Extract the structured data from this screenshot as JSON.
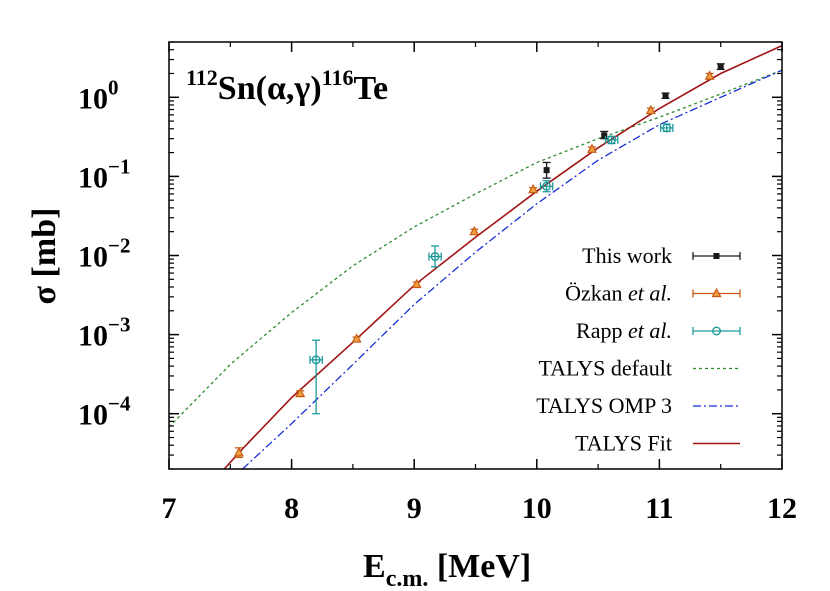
{
  "chart_data": {
    "type": "scatter",
    "title": "",
    "annotation": {
      "target_mass": "112",
      "target_el": "Sn",
      "reaction": "(α,γ)",
      "product_mass": "116",
      "product_el": "Te"
    },
    "xlabel": {
      "main": "E",
      "sub": "c.m.",
      "unit": " [MeV]"
    },
    "ylabel": "σ [mb]",
    "xlim": [
      7,
      12
    ],
    "ylim": [
      2e-05,
      5
    ],
    "yscale": "log",
    "xticks": [
      "7",
      "8",
      "9",
      "10",
      "11",
      "12"
    ],
    "yticks": [
      {
        "value": 0.0001,
        "base": "10",
        "exp": "−4"
      },
      {
        "value": 0.001,
        "base": "10",
        "exp": "−3"
      },
      {
        "value": 0.01,
        "base": "10",
        "exp": "−2"
      },
      {
        "value": 0.1,
        "base": "10",
        "exp": "−1"
      },
      {
        "value": 1,
        "base": "10",
        "exp": "0"
      }
    ],
    "legend_position": "bottom-right",
    "colors": {
      "this_work": "#1a1a1a",
      "ozkan": "#c85a14",
      "rapp": "#1f9a9a",
      "talys_default": "#2e8b2e",
      "talys_omp3": "#1a2fd6",
      "talys_fit": "#a01414"
    },
    "series": [
      {
        "name": "This work",
        "kind": "points",
        "marker": "square",
        "color": "#1a1a1a",
        "points": [
          {
            "x": 10.08,
            "y": 0.12,
            "ylo": 0.095,
            "yhi": 0.15
          },
          {
            "x": 10.55,
            "y": 0.33,
            "ylo": 0.3,
            "yhi": 0.37
          },
          {
            "x": 11.05,
            "y": 1.05,
            "ylo": 0.97,
            "yhi": 1.13
          },
          {
            "x": 11.5,
            "y": 2.45,
            "ylo": 2.25,
            "yhi": 2.65
          }
        ]
      },
      {
        "name": "Özkan",
        "name_suffix": " et al.",
        "kind": "points",
        "marker": "triangle",
        "color": "#c85a14",
        "points": [
          {
            "x": 7.57,
            "y": 3.2e-05,
            "ylo": 2.8e-05,
            "yhi": 3.7e-05
          },
          {
            "x": 8.07,
            "y": 0.00018,
            "ylo": 0.000165,
            "yhi": 0.000195
          },
          {
            "x": 8.53,
            "y": 0.00088,
            "ylo": 0.00083,
            "yhi": 0.00093
          },
          {
            "x": 9.02,
            "y": 0.0043,
            "ylo": 0.004,
            "yhi": 0.0046
          },
          {
            "x": 9.49,
            "y": 0.02,
            "ylo": 0.0186,
            "yhi": 0.0215
          },
          {
            "x": 9.97,
            "y": 0.068,
            "ylo": 0.064,
            "yhi": 0.072
          },
          {
            "x": 10.45,
            "y": 0.22,
            "ylo": 0.205,
            "yhi": 0.235
          },
          {
            "x": 10.93,
            "y": 0.68,
            "ylo": 0.63,
            "yhi": 0.73
          },
          {
            "x": 11.41,
            "y": 1.85,
            "ylo": 1.7,
            "yhi": 2.0
          }
        ]
      },
      {
        "name": "Rapp",
        "name_suffix": " et al.",
        "kind": "points",
        "marker": "circle",
        "color": "#1f9a9a",
        "points": [
          {
            "x": 8.2,
            "y": 0.00048,
            "ylo": 0.0001,
            "yhi": 0.00085,
            "xerr": 0.05
          },
          {
            "x": 9.17,
            "y": 0.0097,
            "ylo": 0.0072,
            "yhi": 0.0132,
            "xerr": 0.05
          },
          {
            "x": 10.08,
            "y": 0.075,
            "ylo": 0.064,
            "yhi": 0.088,
            "xerr": 0.05
          },
          {
            "x": 10.61,
            "y": 0.29,
            "ylo": 0.26,
            "yhi": 0.32,
            "xerr": 0.05
          },
          {
            "x": 11.06,
            "y": 0.41,
            "ylo": 0.37,
            "yhi": 0.46,
            "xerr": 0.05
          }
        ]
      },
      {
        "name": "TALYS default",
        "kind": "line",
        "style": "dotted",
        "color": "#2e8b2e",
        "points": [
          {
            "x": 7.0,
            "y": 6.8e-05
          },
          {
            "x": 7.5,
            "y": 0.00042
          },
          {
            "x": 8.0,
            "y": 0.0019
          },
          {
            "x": 8.5,
            "y": 0.0074
          },
          {
            "x": 9.0,
            "y": 0.023
          },
          {
            "x": 9.5,
            "y": 0.06
          },
          {
            "x": 10.0,
            "y": 0.15
          },
          {
            "x": 10.5,
            "y": 0.3
          },
          {
            "x": 11.0,
            "y": 0.56
          },
          {
            "x": 11.5,
            "y": 1.1
          },
          {
            "x": 12.0,
            "y": 2.2
          }
        ]
      },
      {
        "name": "TALYS OMP 3",
        "kind": "line",
        "style": "dashdot",
        "color": "#1a2fd6",
        "points": [
          {
            "x": 7.6,
            "y": 2e-05
          },
          {
            "x": 8.0,
            "y": 7.5e-05
          },
          {
            "x": 8.5,
            "y": 0.00042
          },
          {
            "x": 9.0,
            "y": 0.0024
          },
          {
            "x": 9.5,
            "y": 0.011
          },
          {
            "x": 10.0,
            "y": 0.045
          },
          {
            "x": 10.5,
            "y": 0.16
          },
          {
            "x": 11.0,
            "y": 0.45
          },
          {
            "x": 11.5,
            "y": 1.0
          },
          {
            "x": 12.0,
            "y": 2.2
          }
        ]
      },
      {
        "name": "TALYS Fit",
        "kind": "line",
        "style": "solid",
        "color": "#a01414",
        "points": [
          {
            "x": 7.45,
            "y": 2e-05
          },
          {
            "x": 7.6,
            "y": 3.6e-05
          },
          {
            "x": 8.0,
            "y": 0.00016
          },
          {
            "x": 8.5,
            "y": 0.0008
          },
          {
            "x": 9.0,
            "y": 0.0042
          },
          {
            "x": 9.5,
            "y": 0.017
          },
          {
            "x": 10.0,
            "y": 0.065
          },
          {
            "x": 10.5,
            "y": 0.23
          },
          {
            "x": 11.0,
            "y": 0.72
          },
          {
            "x": 11.5,
            "y": 2.0
          },
          {
            "x": 12.0,
            "y": 4.5
          }
        ]
      }
    ]
  }
}
